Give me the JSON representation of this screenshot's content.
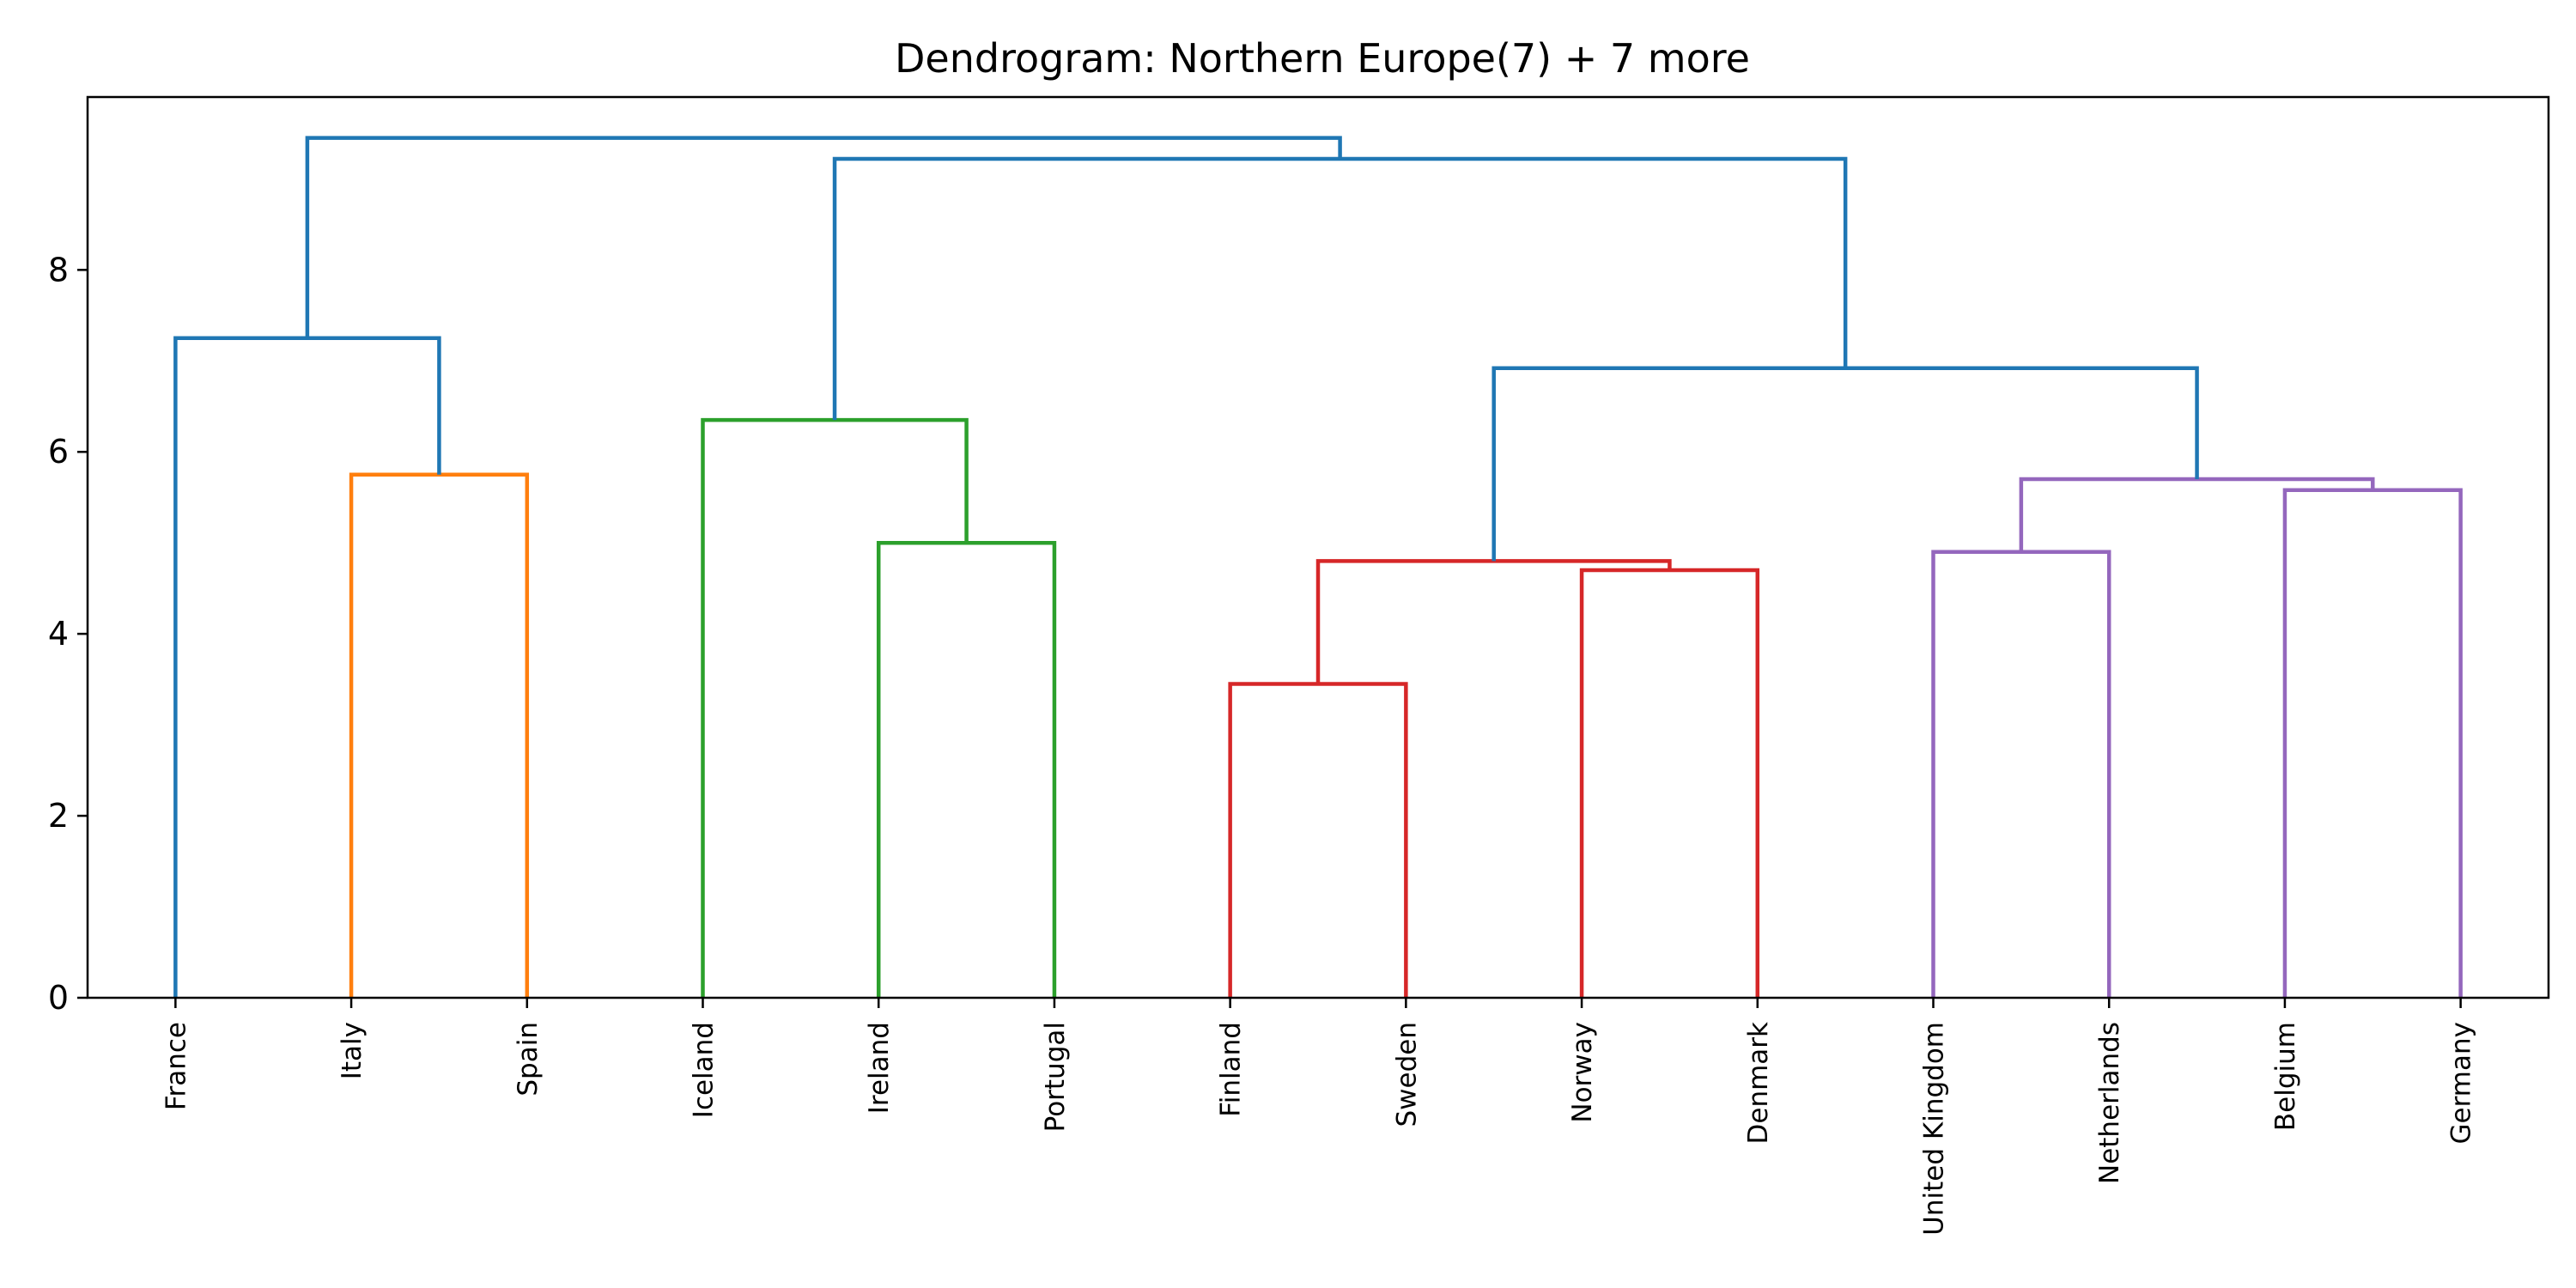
{
  "chart_data": {
    "type": "dendrogram",
    "title": "Dendrogram: Northern Europe(7) + 7 more",
    "xlabel": "",
    "ylabel": "",
    "ylim": [
      0,
      9.9
    ],
    "y_ticks": [
      0,
      2,
      4,
      6,
      8
    ],
    "grid": false,
    "legend": "none",
    "leaves": [
      "France",
      "Italy",
      "Spain",
      "Iceland",
      "Ireland",
      "Portugal",
      "Finland",
      "Sweden",
      "Norway",
      "Denmark",
      "United Kingdom",
      "Netherlands",
      "Belgium",
      "Germany"
    ],
    "colors": {
      "C0": "#1f77b4",
      "C1": "#ff7f0e",
      "C2": "#2ca02c",
      "C3": "#d62728",
      "C4": "#9467bd"
    },
    "merges": [
      {
        "left": "Italy",
        "right": "Spain",
        "height": 5.75,
        "color": "C1"
      },
      {
        "left": "France",
        "right": "Italy+Spain",
        "height": 7.25,
        "color": "C0"
      },
      {
        "left": "Ireland",
        "right": "Portugal",
        "height": 5.0,
        "color": "C2"
      },
      {
        "left": "Iceland",
        "right": "Ireland+Portugal",
        "height": 6.35,
        "color": "C2"
      },
      {
        "left": "Finland",
        "right": "Sweden",
        "height": 3.45,
        "color": "C3"
      },
      {
        "left": "Norway",
        "right": "Denmark",
        "height": 4.7,
        "color": "C3"
      },
      {
        "left": "Finland+Sweden",
        "right": "Norway+Denmark",
        "height": 4.8,
        "color": "C3"
      },
      {
        "left": "United Kingdom",
        "right": "Netherlands",
        "height": 4.9,
        "color": "C4"
      },
      {
        "left": "Belgium",
        "right": "Germany",
        "height": 5.58,
        "color": "C4"
      },
      {
        "left": "United Kingdom+Netherlands",
        "right": "Belgium+Germany",
        "height": 5.7,
        "color": "C4"
      },
      {
        "left": "Finland+Sweden+Norway+Denmark",
        "right": "United Kingdom+Netherlands+Belgium+Germany",
        "height": 6.92,
        "color": "C0"
      },
      {
        "left": "Iceland+Ireland+Portugal",
        "right": "Finland+Sweden+Norway+Denmark+United Kingdom+Netherlands+Belgium+Germany",
        "height": 9.22,
        "color": "C0"
      },
      {
        "left": "France+Italy+Spain",
        "right": "Iceland+Ireland+Portugal+Finland+Sweden+Norway+Denmark+United Kingdom+Netherlands+Belgium+Germany",
        "height": 9.45,
        "color": "C0"
      }
    ]
  }
}
